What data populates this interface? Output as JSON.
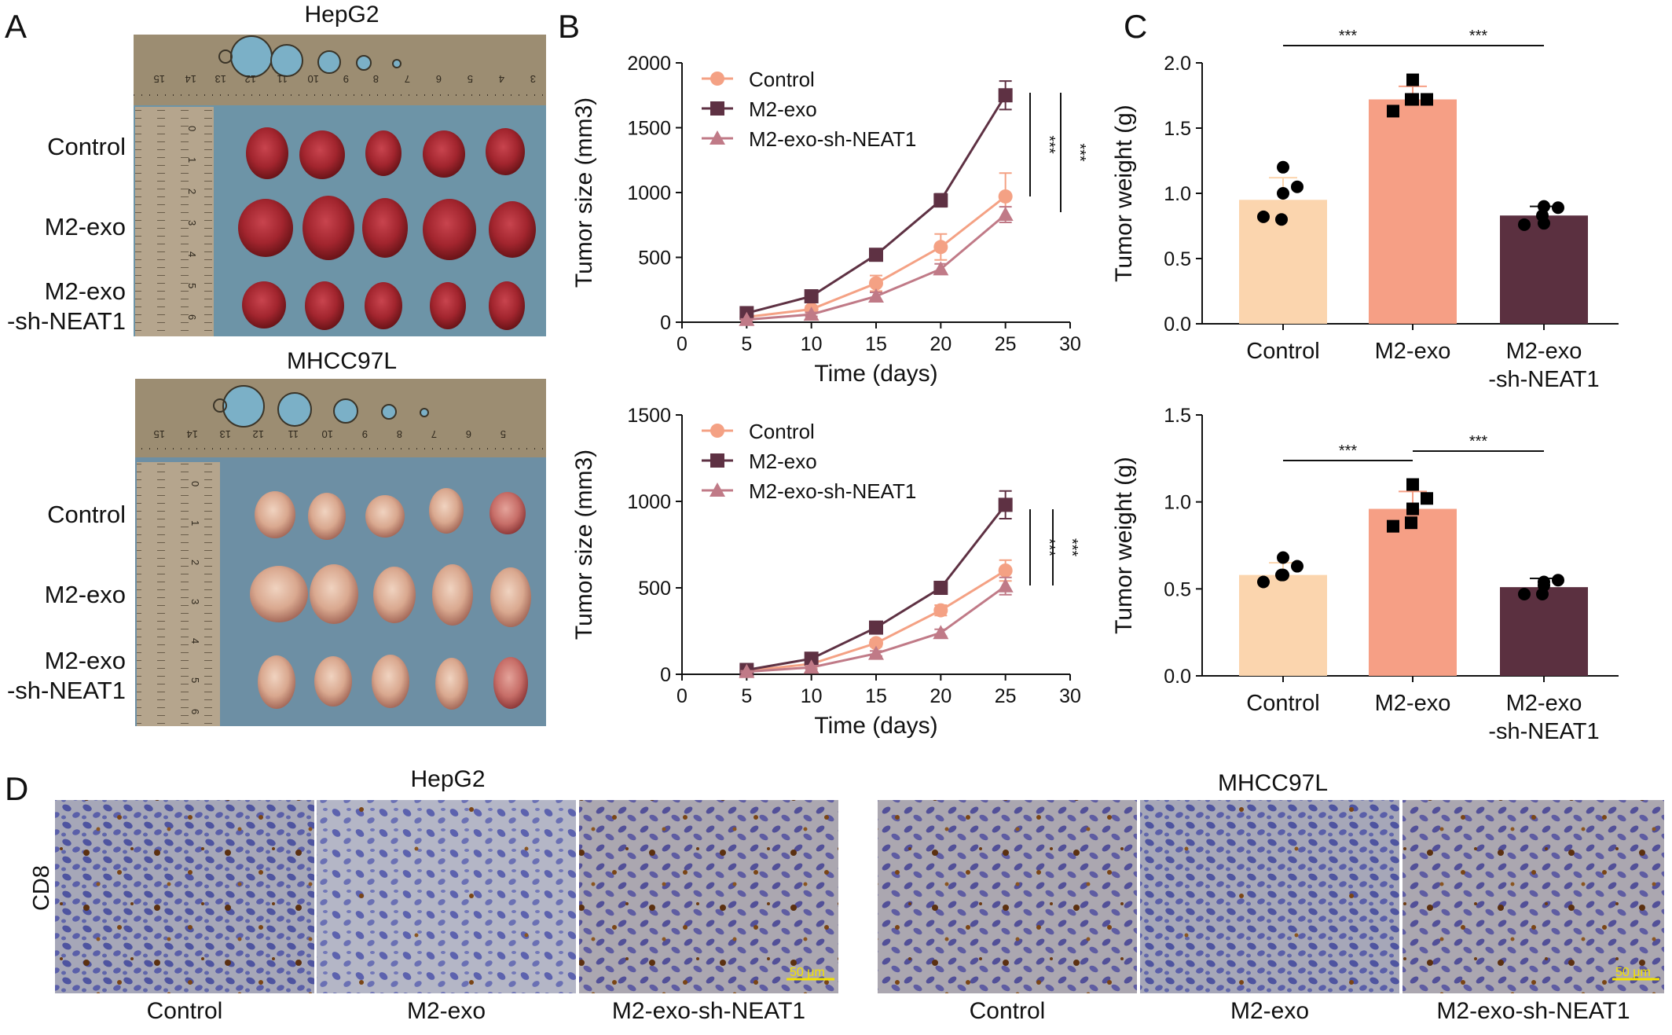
{
  "panels": {
    "a": "A",
    "b": "B",
    "c": "C",
    "d": "D"
  },
  "photos": {
    "top_title": "HepG2",
    "bottom_title": "MHCC97L",
    "row_labels": [
      "Control",
      "M2-exo",
      "M2-exo\n-sh-NEAT1"
    ],
    "ruler_top_numbers": [
      "15",
      "14",
      "13",
      "12",
      "11",
      "10",
      "9",
      "8",
      "7",
      "6",
      "5",
      "4",
      "3"
    ],
    "ruler_bottom_numbers": [
      "15",
      "14",
      "13",
      "12",
      "11",
      "10",
      "9",
      "8",
      "7",
      "6",
      "5"
    ],
    "ruler_side_numbers": [
      "0",
      "1",
      "2",
      "3",
      "4",
      "5",
      "6"
    ]
  },
  "ihc": {
    "hepg2_title": "HepG2",
    "mhcc_title": "MHCC97L",
    "row_label": "CD8",
    "captions": [
      "Control",
      "M2-exo",
      "M2-exo-sh-NEAT1",
      "Control",
      "M2-exo",
      "M2-exo-sh-NEAT1"
    ],
    "scale_bar": "50 μm"
  },
  "colors": {
    "control": "#f4a184",
    "m2exo": "#5e3143",
    "shneat1": "#c07a87",
    "bar_control": "#fbd5ae",
    "bar_m2": "#f69f85",
    "bar_sh": "#5b3040"
  },
  "chart_data": [
    {
      "type": "line",
      "panel": "B",
      "cell_line": "HepG2",
      "xlabel": "Time (days)",
      "ylabel": "Tumor size (mm3)",
      "xlim": [
        0,
        30
      ],
      "ylim": [
        0,
        2000
      ],
      "xticks": [
        "0",
        "5",
        "10",
        "15",
        "20",
        "25",
        "30"
      ],
      "yticks": [
        "0",
        "500",
        "1000",
        "1500",
        "2000"
      ],
      "x": [
        5,
        10,
        15,
        20,
        25
      ],
      "series": [
        {
          "name": "Control",
          "values": [
            40,
            100,
            300,
            580,
            970
          ],
          "err": [
            10,
            25,
            60,
            100,
            180
          ],
          "marker": "circle"
        },
        {
          "name": "M2-exo",
          "values": [
            70,
            200,
            520,
            940,
            1750
          ],
          "err": [
            10,
            20,
            30,
            50,
            110
          ],
          "marker": "square"
        },
        {
          "name": "M2-exo-sh-NEAT1",
          "values": [
            20,
            60,
            200,
            410,
            830
          ],
          "err": [
            5,
            15,
            30,
            40,
            60
          ],
          "marker": "triangle"
        }
      ],
      "significance": [
        "***",
        "***"
      ],
      "legend": "top-left"
    },
    {
      "type": "line",
      "panel": "B",
      "cell_line": "MHCC97L",
      "xlabel": "Time (days)",
      "ylabel": "Tumor size (mm3)",
      "xlim": [
        0,
        30
      ],
      "ylim": [
        0,
        1500
      ],
      "xticks": [
        "0",
        "5",
        "10",
        "15",
        "20",
        "25",
        "30"
      ],
      "yticks": [
        "0",
        "500",
        "1000",
        "1500"
      ],
      "x": [
        5,
        10,
        15,
        20,
        25
      ],
      "series": [
        {
          "name": "Control",
          "values": [
            20,
            60,
            180,
            370,
            600
          ],
          "err": [
            5,
            10,
            20,
            30,
            60
          ],
          "marker": "circle"
        },
        {
          "name": "M2-exo",
          "values": [
            25,
            90,
            270,
            500,
            980
          ],
          "err": [
            5,
            10,
            20,
            30,
            80
          ],
          "marker": "square"
        },
        {
          "name": "M2-exo-sh-NEAT1",
          "values": [
            15,
            40,
            120,
            240,
            510
          ],
          "err": [
            5,
            10,
            15,
            20,
            50
          ],
          "marker": "triangle"
        }
      ],
      "significance": [
        "***",
        "***"
      ],
      "legend": "top-left"
    },
    {
      "type": "bar",
      "panel": "C",
      "cell_line": "HepG2",
      "ylabel": "Tumor weight (g)",
      "ylim": [
        0,
        2.0
      ],
      "yticks": [
        "0.0",
        "0.5",
        "1.0",
        "1.5",
        "2.0"
      ],
      "categories": [
        "Control",
        "M2-exo",
        "M2-exo\n-sh-NEAT1"
      ],
      "values": [
        0.95,
        1.72,
        0.83
      ],
      "err": [
        0.17,
        0.1,
        0.07
      ],
      "points": [
        [
          1.2,
          1.05,
          1.0,
          0.82,
          0.8
        ],
        [
          1.87,
          1.72,
          1.72,
          1.63,
          1.72
        ],
        [
          0.9,
          0.89,
          0.77,
          0.76,
          0.83
        ]
      ],
      "significance": [
        "***",
        "***"
      ]
    },
    {
      "type": "bar",
      "panel": "C",
      "cell_line": "MHCC97L",
      "ylabel": "Tumor weight (g)",
      "ylim": [
        0,
        1.5
      ],
      "yticks": [
        "0.0",
        "0.5",
        "1.0",
        "1.5"
      ],
      "categories": [
        "Control",
        "M2-exo",
        "M2-exo\n-sh-NEAT1"
      ],
      "values": [
        0.58,
        0.96,
        0.51
      ],
      "err": [
        0.07,
        0.1,
        0.05
      ],
      "points": [
        [
          0.68,
          0.63,
          0.58,
          0.54,
          0.58
        ],
        [
          1.1,
          1.02,
          0.96,
          0.86,
          0.88
        ],
        [
          0.54,
          0.55,
          0.52,
          0.47,
          0.47
        ]
      ],
      "significance": [
        "***",
        "***"
      ]
    }
  ]
}
